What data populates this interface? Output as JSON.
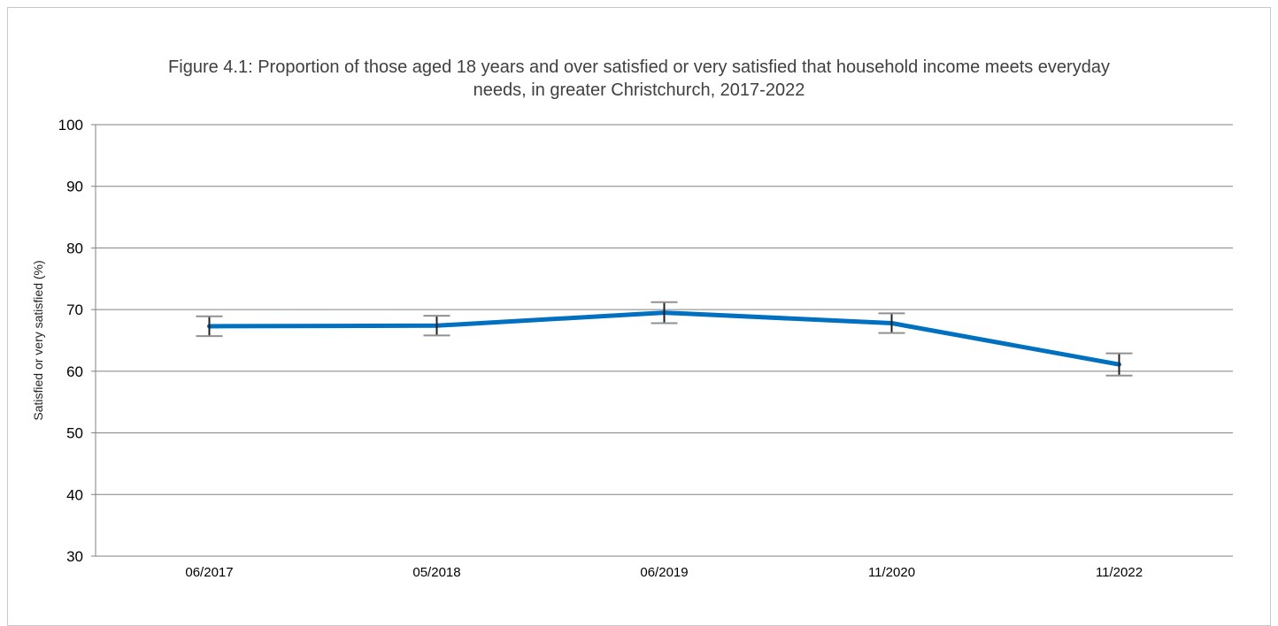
{
  "chart_data": {
    "type": "line",
    "title_lines": [
      "Figure 4.1: Proportion of those aged 18 years and over satisfied or very satisfied that household income meets everyday",
      "needs, in greater Christchurch, 2017-2022"
    ],
    "xlabel": "",
    "ylabel": "Satisfied or very satisfied (%)",
    "categories": [
      "06/2017",
      "05/2018",
      "06/2019",
      "11/2020",
      "11/2022"
    ],
    "ylim": [
      30,
      100
    ],
    "yticks": [
      "100",
      "90",
      "80",
      "70",
      "60",
      "50",
      "40",
      "30"
    ],
    "grid": true,
    "legend": "none",
    "series": [
      {
        "values": [
          67.3,
          67.4,
          69.5,
          67.8,
          61.1
        ],
        "error_low": [
          65.7,
          65.8,
          67.8,
          66.2,
          59.3
        ],
        "error_high": [
          68.9,
          69.0,
          71.2,
          69.4,
          62.9
        ],
        "color": "#0070c0"
      }
    ]
  }
}
